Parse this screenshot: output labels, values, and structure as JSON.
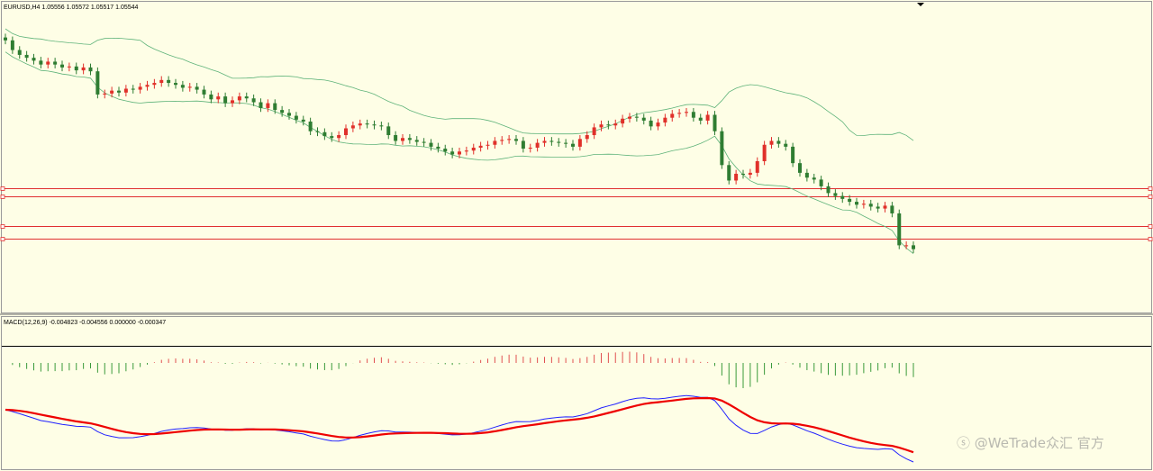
{
  "main_pane": {
    "header": "EURUSD,H4  1.05556 1.05572 1.05517 1.05544"
  },
  "macd_pane": {
    "header": "MACD(12,26,9) -0.004823 -0.004556 0.000000 -0.000347"
  },
  "watermark": "ⓢ @WeTrade众汇 官方",
  "colors": {
    "background": "#fefee6",
    "bull_candle": "#e0302a",
    "bear_candle": "#2f7d32",
    "bollinger": "#5fb37a",
    "horizontal_line": "#e03030",
    "price_line": "#000000",
    "macd_line": "#2020ff",
    "signal_line": "#ee0000",
    "hist_positive": "#e05050",
    "hist_negative": "#3a9a3a"
  },
  "chart_data": [
    {
      "type": "candlestick",
      "symbol": "EURUSD",
      "timeframe": "H4",
      "last_ohlc": {
        "open": 1.05556,
        "high": 1.05572,
        "low": 1.05517,
        "close": 1.05544
      },
      "indicators": [
        "Bollinger Bands"
      ],
      "closes_trend": [
        1.087,
        1.086,
        1.0855,
        1.0852,
        1.0849,
        1.0845,
        1.0848,
        1.0845,
        1.0842,
        1.0843,
        1.0839,
        1.0842,
        1.0838,
        1.0814,
        1.0815,
        1.0818,
        1.0816,
        1.082,
        1.0819,
        1.0822,
        1.0824,
        1.0826,
        1.0829,
        1.0826,
        1.0824,
        1.0821,
        1.0822,
        1.0819,
        1.0814,
        1.0809,
        1.0812,
        1.0805,
        1.0808,
        1.0812,
        1.081,
        1.0806,
        1.08,
        1.0805,
        1.0798,
        1.0795,
        1.0792,
        1.0788,
        1.0786,
        1.0776,
        1.0775,
        1.0771,
        1.0769,
        1.0772,
        1.0779,
        1.0782,
        1.0784,
        1.0783,
        1.0782,
        1.0781,
        1.0772,
        1.0766,
        1.0769,
        1.0767,
        1.0765,
        1.0764,
        1.076,
        1.0758,
        1.0755,
        1.0752,
        1.0755,
        1.0756,
        1.0759,
        1.0761,
        1.0762,
        1.0766,
        1.0767,
        1.0768,
        1.0766,
        1.0758,
        1.0759,
        1.0764,
        1.0766,
        1.0765,
        1.0764,
        1.0763,
        1.076,
        1.0768,
        1.0772,
        1.078,
        1.0783,
        1.0782,
        1.0784,
        1.0789,
        1.0791,
        1.079,
        1.0787,
        1.0781,
        1.0785,
        1.079,
        1.0794,
        1.0795,
        1.0796,
        1.079,
        1.0787,
        1.0793,
        1.0776,
        1.0741,
        1.0725,
        1.0732,
        1.0731,
        1.0733,
        1.0745,
        1.0762,
        1.0766,
        1.0763,
        1.076,
        1.0743,
        1.0733,
        1.0728,
        1.0726,
        1.0719,
        1.0712,
        1.0709,
        1.0706,
        1.0703,
        1.07,
        1.0701,
        1.0698,
        1.0696,
        1.0699,
        1.0691,
        1.0658,
        1.0658,
        1.0654
      ],
      "horizontal_lines": 5
    },
    {
      "type": "bar+line",
      "name": "MACD(12,26,9)",
      "values": {
        "macd": -0.004823,
        "signal": -0.004556,
        "c3": 0.0,
        "c4": -0.000347
      },
      "series": [
        {
          "name": "MACD",
          "role": "line"
        },
        {
          "name": "Signal",
          "role": "line"
        },
        {
          "name": "Histogram",
          "role": "bar"
        }
      ]
    }
  ]
}
